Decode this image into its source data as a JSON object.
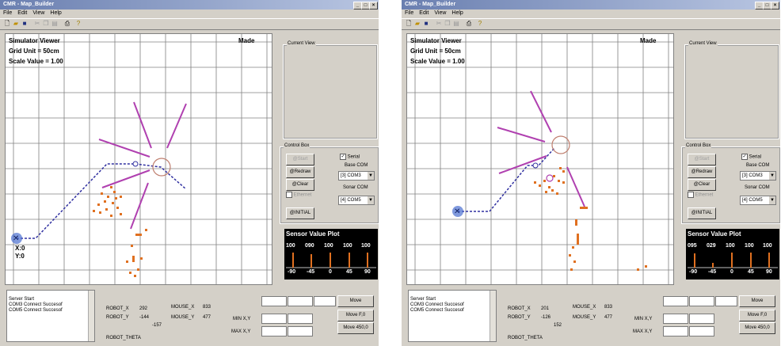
{
  "windows": [
    {
      "title": "CMR - Map_Builder",
      "menu": [
        "File",
        "Edit",
        "View",
        "Help"
      ],
      "viewer": {
        "title": "Simulator Viewer",
        "grid_unit": "Grid Unit = 50cm",
        "scale_value": "Scale Value = 1.00",
        "mode_label": "Made",
        "coord_x": "X:0",
        "coord_y": "Y:0"
      },
      "side": {
        "current_view_label": "Current View",
        "control_box_label": "Control Box",
        "start_btn": "@Start",
        "redraw_btn": "@Redraw",
        "clear_btn": "@Clear",
        "ethernet_label": "Ethernet",
        "initial_btn": "@INITIAL",
        "serial_label": "Serial",
        "base_com_label": "Base COM",
        "base_com_value": "[3] COM3",
        "sonar_com_label": "Sonar COM",
        "sonar_com_value": "[4] COM5",
        "sensor_title": "Sensor Value Plot",
        "sensor_values": [
          "100",
          "090",
          "100",
          "100",
          "100"
        ],
        "sensor_angles": [
          "-90",
          "-45",
          "0",
          "45",
          "90"
        ]
      },
      "bottom": {
        "log_lines": [
          "Server Start",
          "COM3 Connect Succesof",
          "COM5 Connect Succesof"
        ],
        "robot_x_label": "ROBOT_X",
        "robot_x_value": "292",
        "robot_y_label": "ROBOT_Y",
        "robot_y_value": "-144",
        "robot_theta_value": "-157",
        "robot_theta_label": "ROBOT_THETA",
        "mouse_x_label": "MOUSE_X",
        "mouse_x_value": "833",
        "mouse_y_label": "MOUSE_Y",
        "mouse_y_value": "477",
        "min_label": "MIN X,Y",
        "max_label": "MAX X,Y",
        "move_btn": "Move",
        "move_f0_btn": "Move F,0",
        "move_450_btn": "Move 450,0"
      }
    },
    {
      "title": "CMR - Map_Builder",
      "menu": [
        "File",
        "Edit",
        "View",
        "Help"
      ],
      "viewer": {
        "title": "Simulator Viewer",
        "grid_unit": "Grid Unit = 50cm",
        "scale_value": "Scale Value = 1.00",
        "mode_label": "Made",
        "coord_x": "",
        "coord_y": ""
      },
      "side": {
        "current_view_label": "Current View",
        "control_box_label": "Control Box",
        "start_btn": "@Start",
        "redraw_btn": "@Redraw",
        "clear_btn": "@Clear",
        "ethernet_label": "Ethernet",
        "initial_btn": "@INITIAL",
        "serial_label": "Serial",
        "base_com_label": "Base COM",
        "base_com_value": "[3] COM3",
        "sonar_com_label": "Sonar COM",
        "sonar_com_value": "[4] COM5",
        "sensor_title": "Sensor Value Plot",
        "sensor_values": [
          "095",
          "029",
          "100",
          "100",
          "100"
        ],
        "sensor_angles": [
          "-90",
          "-45",
          "0",
          "45",
          "90"
        ]
      },
      "bottom": {
        "log_lines": [
          "Server Start",
          "COM3 Connect Succesof",
          "COM5 Connect Succesof"
        ],
        "robot_x_label": "ROBOT_X",
        "robot_x_value": "201",
        "robot_y_label": "ROBOT_Y",
        "robot_y_value": "-126",
        "robot_theta_value": "152",
        "robot_theta_label": "ROBOT_THETA",
        "mouse_x_label": "MOUSE_X",
        "mouse_x_value": "833",
        "mouse_y_label": "MOUSE_Y",
        "mouse_y_value": "477",
        "min_label": "MIN X,Y",
        "max_label": "MAX X,Y",
        "move_btn": "Move",
        "move_f0_btn": "Move F,0",
        "move_450_btn": "Move 450,0"
      }
    }
  ],
  "colors": {
    "path": "#3030a0",
    "sonar_ray": "#b040b0",
    "obstacle": "#e07020",
    "robot": "#c08070",
    "start": "#4a6fd0"
  },
  "icons": [
    "new-file-icon",
    "open-folder-icon",
    "save-icon",
    "cut-icon",
    "copy-icon",
    "paste-icon",
    "print-icon",
    "help-icon"
  ]
}
